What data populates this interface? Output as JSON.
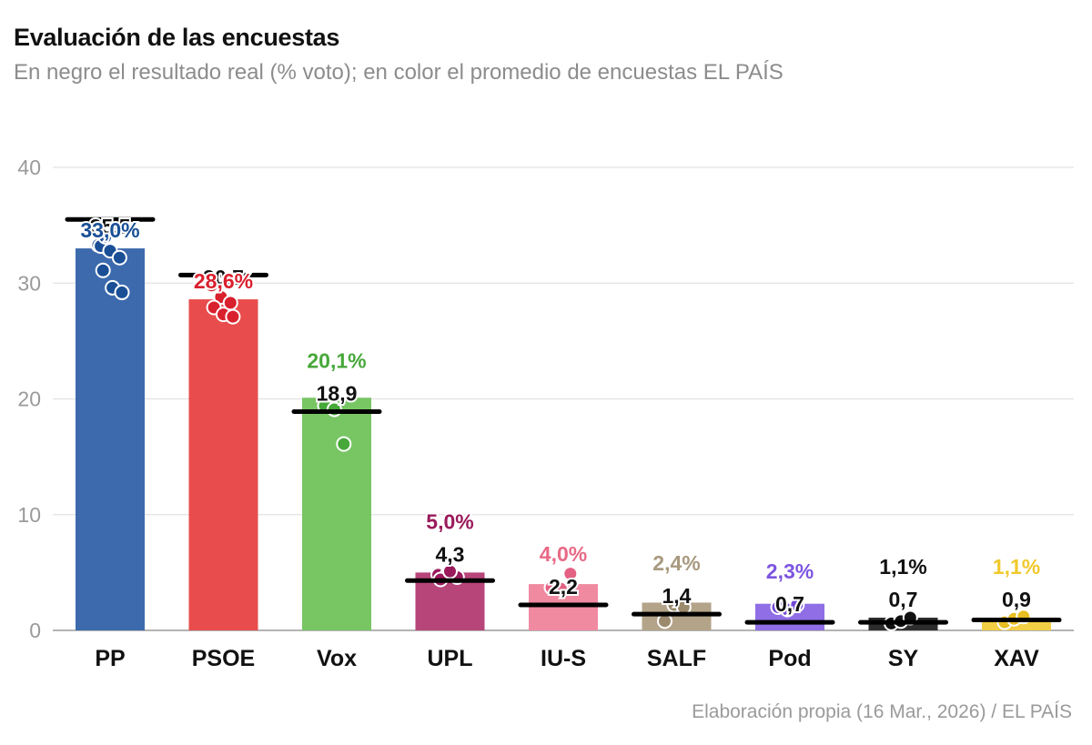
{
  "header": {
    "title": "Evaluación de las encuestas",
    "subtitle": "En negro el resultado real (% voto); en color el promedio de encuestas EL PAÍS"
  },
  "footer": {
    "source": "Elaboración propia (16 Mar., 2026) / EL PAÍS"
  },
  "chart_data": {
    "type": "bar",
    "title": "Evaluación de las encuestas",
    "subtitle": "En negro el resultado real (% voto); en color el promedio de encuestas EL PAÍS",
    "ylim": [
      0,
      40
    ],
    "yticks": [
      0,
      10,
      20,
      30,
      40
    ],
    "grid": true,
    "categories": [
      "PP",
      "PSOE",
      "Vox",
      "UPL",
      "IU-S",
      "SALF",
      "Pod",
      "SY",
      "XAV"
    ],
    "series": [
      {
        "values": [
          33.0,
          28.6,
          20.1,
          5.0,
          4.0,
          2.4,
          2.3,
          1.1,
          1.1
        ],
        "labels": [
          "33,0%",
          "28,6%",
          "20,1%",
          "5,0%",
          "4,0%",
          "2,4%",
          "2,3%",
          "1,1%",
          "1,1%"
        ]
      },
      {
        "values": [
          35.5,
          30.7,
          18.9,
          4.3,
          2.2,
          1.4,
          0.7,
          0.7,
          0.9
        ],
        "labels": [
          "35,5",
          "30,7",
          "18,9",
          "4,3",
          "2,2",
          "1,4",
          "0,7",
          "0,7",
          "0,9"
        ]
      }
    ],
    "polls": [
      [
        33.3,
        33.0,
        34.7,
        33.2,
        32.8,
        32.2,
        31.1,
        29.6,
        29.2,
        34.0
      ],
      [
        29.8,
        28.8,
        28.3,
        27.9,
        27.3,
        27.1
      ],
      [
        19.4,
        19.1,
        16.1
      ],
      [
        4.8,
        4.9,
        4.6,
        4.4,
        5.1
      ],
      [
        3.7,
        3.6,
        4.9
      ],
      [
        0.8,
        2.2,
        2.0
      ],
      [
        2.0,
        1.8,
        2.2
      ],
      [
        0.6,
        0.8,
        1.1
      ],
      [
        0.7,
        1.0,
        1.2
      ]
    ],
    "colors": [
      "#3c6aad",
      "#e84c4c",
      "#78c564",
      "#b8457a",
      "#f08aa0",
      "#b3a388",
      "#8f6ee6",
      "#2d2d2d",
      "#f2cf45"
    ],
    "point_colors": [
      "#1a4f96",
      "#d9202d",
      "#47a83a",
      "#9a1a5b",
      "#e36183",
      "#9c8a6c",
      "#7249d6",
      "#111111",
      "#e8bf23"
    ],
    "label_colors": [
      "#1a4f96",
      "#d9202d",
      "#47a83a",
      "#9a1a5b",
      "#e86a86",
      "#a8997f",
      "#7d55e0",
      "#111111",
      "#f0c92c"
    ]
  }
}
